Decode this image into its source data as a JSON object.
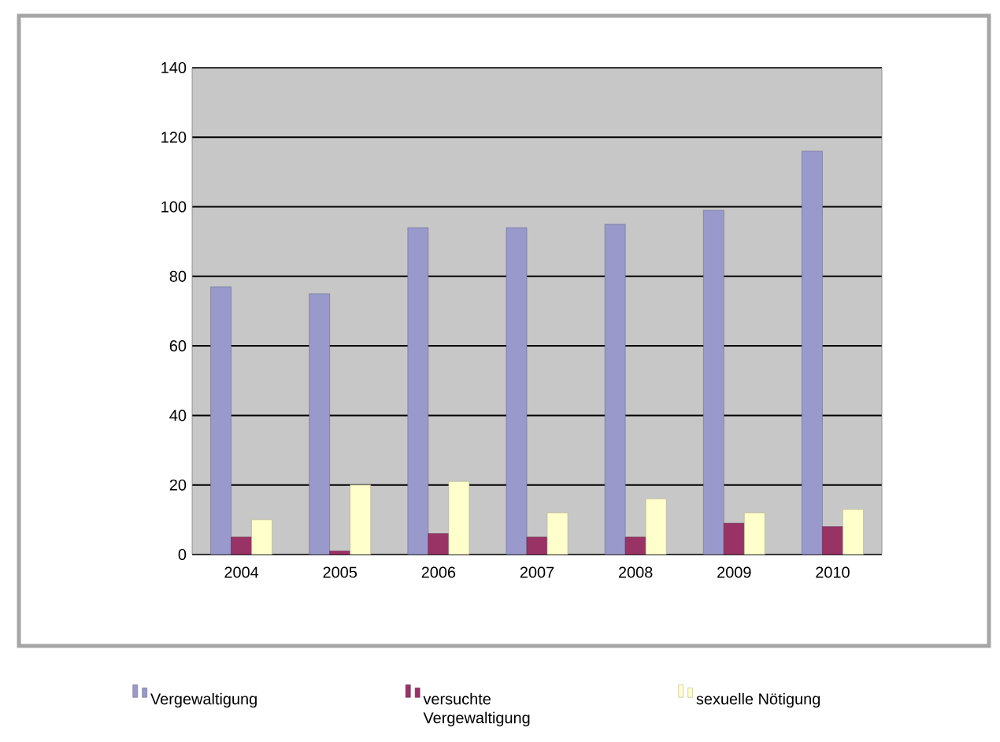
{
  "chart_data": {
    "type": "bar",
    "categories": [
      "2004",
      "2005",
      "2006",
      "2007",
      "2008",
      "2009",
      "2010"
    ],
    "series": [
      {
        "name": "Vergewaltigung",
        "color": "#9999cc",
        "values": [
          77,
          75,
          94,
          94,
          95,
          99,
          116
        ]
      },
      {
        "name": "versuchte Vergewaltigung",
        "color": "#993366",
        "values": [
          5,
          1,
          6,
          5,
          5,
          9,
          8
        ]
      },
      {
        "name": "sexuelle Nötigung",
        "color": "#ffffcc",
        "values": [
          10,
          20,
          21,
          12,
          16,
          12,
          13
        ]
      }
    ],
    "ylim": [
      0,
      140
    ],
    "yticks": [
      0,
      20,
      40,
      60,
      80,
      100,
      120,
      140
    ],
    "grid": "y",
    "legend": "bottom"
  }
}
